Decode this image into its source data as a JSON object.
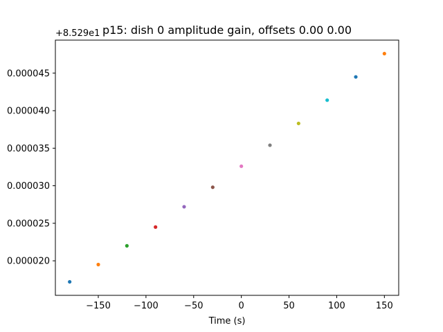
{
  "chart_data": {
    "type": "scatter",
    "title": "p15: dish 0 amplitude gain, offsets 0.00 0.00",
    "xlabel": "Time (s)",
    "ylabel": "",
    "offset_text": "+8.529e1",
    "xlim": [
      -195,
      165
    ],
    "ylim": [
      1.54e-05,
      4.94e-05
    ],
    "xticks": [
      -150,
      -100,
      -50,
      0,
      50,
      100,
      150
    ],
    "xtick_labels": [
      "−150",
      "−100",
      "−50",
      "0",
      "50",
      "100",
      "150"
    ],
    "yticks": [
      2e-05,
      2.5e-05,
      3e-05,
      3.5e-05,
      4e-05,
      4.5e-05
    ],
    "ytick_labels": [
      "0.000020",
      "0.000025",
      "0.000030",
      "0.000035",
      "0.000040",
      "0.000045"
    ],
    "points": [
      {
        "x": -180,
        "y": 1.72e-05,
        "color": "#1f77b4"
      },
      {
        "x": -150,
        "y": 1.95e-05,
        "color": "#ff7f0e"
      },
      {
        "x": -120,
        "y": 2.2e-05,
        "color": "#2ca02c"
      },
      {
        "x": -90,
        "y": 2.45e-05,
        "color": "#d62728"
      },
      {
        "x": -60,
        "y": 2.72e-05,
        "color": "#9467bd"
      },
      {
        "x": -30,
        "y": 2.98e-05,
        "color": "#8c564b"
      },
      {
        "x": 0,
        "y": 3.26e-05,
        "color": "#e377c2"
      },
      {
        "x": 30,
        "y": 3.54e-05,
        "color": "#7f7f7f"
      },
      {
        "x": 60,
        "y": 3.83e-05,
        "color": "#bcbd22"
      },
      {
        "x": 90,
        "y": 4.14e-05,
        "color": "#17becf"
      },
      {
        "x": 120,
        "y": 4.45e-05,
        "color": "#1f77b4"
      },
      {
        "x": 150,
        "y": 4.76e-05,
        "color": "#ff7f0e"
      }
    ]
  }
}
